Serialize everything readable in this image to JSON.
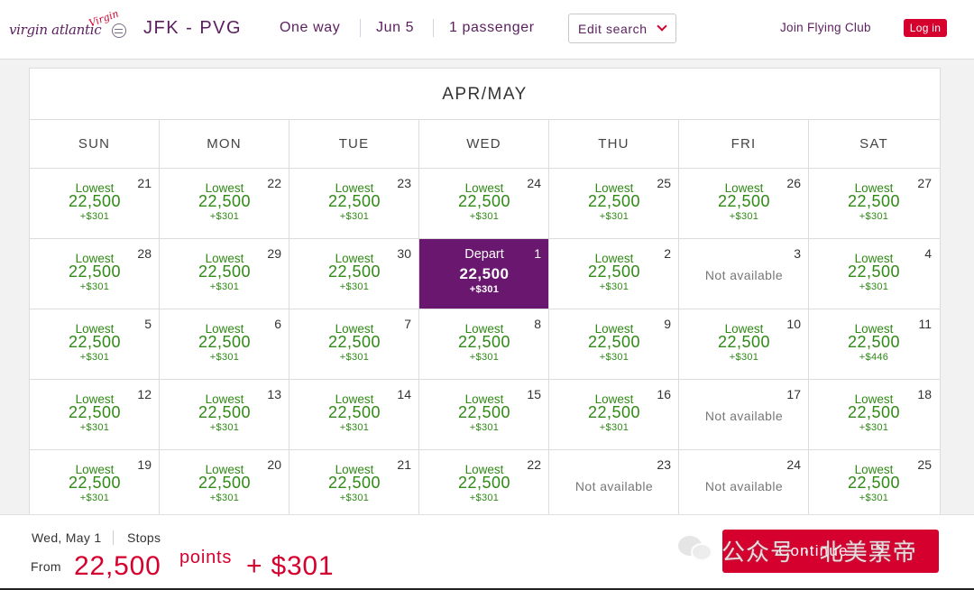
{
  "header": {
    "logo_text": "virgin atlantic",
    "logo_signature": "Virgin",
    "route": "JFK - PVG",
    "trip_type": "One way",
    "date": "Jun 5",
    "passengers": "1 passenger",
    "edit_search": "Edit search",
    "join": "Join Flying Club",
    "login": "Log in"
  },
  "calendar": {
    "month": "APR/MAY",
    "days": [
      "SUN",
      "MON",
      "TUE",
      "WED",
      "THU",
      "FRI",
      "SAT"
    ],
    "weeks": [
      [
        {
          "day": "21",
          "label": "Lowest",
          "points": "22,500",
          "tax": "+$301"
        },
        {
          "day": "22",
          "label": "Lowest",
          "points": "22,500",
          "tax": "+$301"
        },
        {
          "day": "23",
          "label": "Lowest",
          "points": "22,500",
          "tax": "+$301"
        },
        {
          "day": "24",
          "label": "Lowest",
          "points": "22,500",
          "tax": "+$301"
        },
        {
          "day": "25",
          "label": "Lowest",
          "points": "22,500",
          "tax": "+$301"
        },
        {
          "day": "26",
          "label": "Lowest",
          "points": "22,500",
          "tax": "+$301"
        },
        {
          "day": "27",
          "label": "Lowest",
          "points": "22,500",
          "tax": "+$301"
        }
      ],
      [
        {
          "day": "28",
          "label": "Lowest",
          "points": "22,500",
          "tax": "+$301"
        },
        {
          "day": "29",
          "label": "Lowest",
          "points": "22,500",
          "tax": "+$301"
        },
        {
          "day": "30",
          "label": "Lowest",
          "points": "22,500",
          "tax": "+$301"
        },
        {
          "day": "1",
          "label": "Depart",
          "points": "22,500",
          "tax": "+$301",
          "selected": true
        },
        {
          "day": "2",
          "label": "Lowest",
          "points": "22,500",
          "tax": "+$301"
        },
        {
          "day": "3",
          "na": "Not available"
        },
        {
          "day": "4",
          "label": "Lowest",
          "points": "22,500",
          "tax": "+$301"
        }
      ],
      [
        {
          "day": "5",
          "label": "Lowest",
          "points": "22,500",
          "tax": "+$301"
        },
        {
          "day": "6",
          "label": "Lowest",
          "points": "22,500",
          "tax": "+$301"
        },
        {
          "day": "7",
          "label": "Lowest",
          "points": "22,500",
          "tax": "+$301"
        },
        {
          "day": "8",
          "label": "Lowest",
          "points": "22,500",
          "tax": "+$301"
        },
        {
          "day": "9",
          "label": "Lowest",
          "points": "22,500",
          "tax": "+$301"
        },
        {
          "day": "10",
          "label": "Lowest",
          "points": "22,500",
          "tax": "+$301"
        },
        {
          "day": "11",
          "label": "Lowest",
          "points": "22,500",
          "tax": "+$446"
        }
      ],
      [
        {
          "day": "12",
          "label": "Lowest",
          "points": "22,500",
          "tax": "+$301"
        },
        {
          "day": "13",
          "label": "Lowest",
          "points": "22,500",
          "tax": "+$301"
        },
        {
          "day": "14",
          "label": "Lowest",
          "points": "22,500",
          "tax": "+$301"
        },
        {
          "day": "15",
          "label": "Lowest",
          "points": "22,500",
          "tax": "+$301"
        },
        {
          "day": "16",
          "label": "Lowest",
          "points": "22,500",
          "tax": "+$301"
        },
        {
          "day": "17",
          "na": "Not available"
        },
        {
          "day": "18",
          "label": "Lowest",
          "points": "22,500",
          "tax": "+$301"
        }
      ],
      [
        {
          "day": "19",
          "label": "Lowest",
          "points": "22,500",
          "tax": "+$301"
        },
        {
          "day": "20",
          "label": "Lowest",
          "points": "22,500",
          "tax": "+$301"
        },
        {
          "day": "21",
          "label": "Lowest",
          "points": "22,500",
          "tax": "+$301"
        },
        {
          "day": "22",
          "label": "Lowest",
          "points": "22,500",
          "tax": "+$301"
        },
        {
          "day": "23",
          "na": "Not available"
        },
        {
          "day": "24",
          "na": "Not available"
        },
        {
          "day": "25",
          "label": "Lowest",
          "points": "22,500",
          "tax": "+$301"
        }
      ]
    ]
  },
  "footer": {
    "selected_date": "Wed, May 1",
    "stops": "Stops",
    "from": "From",
    "points": "22,500",
    "points_label": "points",
    "cash": "+ $301",
    "continue": "Continue"
  },
  "watermark": {
    "text": "公众号 · 北美票帝"
  },
  "colors": {
    "brand_purple": "#5a1e5f",
    "selected_bg": "#6a1770",
    "accent_red": "#d5002e",
    "available_green": "#2e8a14"
  }
}
